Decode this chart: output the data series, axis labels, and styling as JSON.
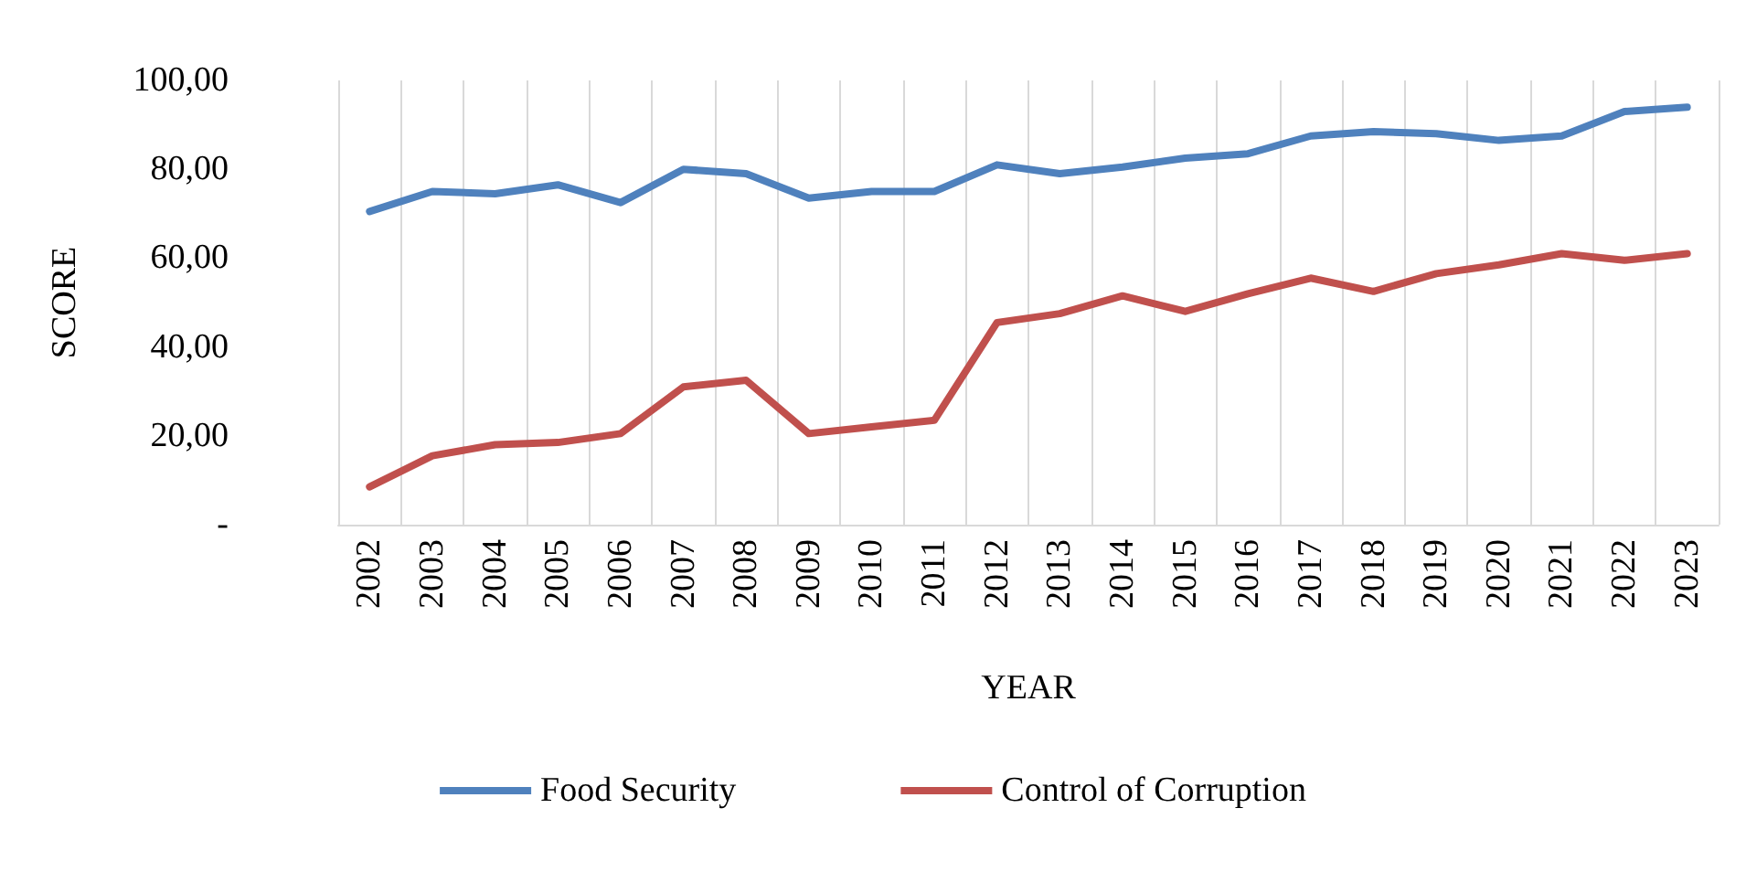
{
  "chart_data": {
    "type": "line",
    "xlabel": "YEAR",
    "ylabel": "SCORE",
    "categories": [
      "2002",
      "2003",
      "2004",
      "2005",
      "2006",
      "2007",
      "2008",
      "2009",
      "2010",
      "2011",
      "2012",
      "2013",
      "2014",
      "2015",
      "2016",
      "2017",
      "2018",
      "2019",
      "2020",
      "2021",
      "2022",
      "2023"
    ],
    "series": [
      {
        "name": "Food Security",
        "color": "#4f81bd",
        "values": [
          70.5,
          75,
          74.5,
          76.5,
          72.5,
          80,
          79,
          73.5,
          75,
          75,
          81,
          79,
          80.5,
          82.5,
          83.5,
          87.5,
          88.5,
          88,
          86.5,
          87.5,
          93,
          94
        ]
      },
      {
        "name": "Control of Corruption",
        "color": "#c0504d",
        "values": [
          8.5,
          15.5,
          18,
          18.5,
          20.5,
          31,
          32.5,
          20.5,
          22,
          23.5,
          45.5,
          47.5,
          51.5,
          48,
          52,
          55.5,
          52.5,
          56.5,
          58.5,
          61,
          59.5,
          61
        ]
      }
    ],
    "ylim": [
      0,
      100
    ],
    "yticks": [
      {
        "value": 0,
        "label": "-"
      },
      {
        "value": 20,
        "label": "20,00"
      },
      {
        "value": 40,
        "label": "40,00"
      },
      {
        "value": 60,
        "label": "60,00"
      },
      {
        "value": 80,
        "label": "80,00"
      },
      {
        "value": 100,
        "label": "100,00"
      }
    ],
    "grid": "x",
    "legend": "bottom",
    "marker": "none",
    "line_style": "solid"
  }
}
